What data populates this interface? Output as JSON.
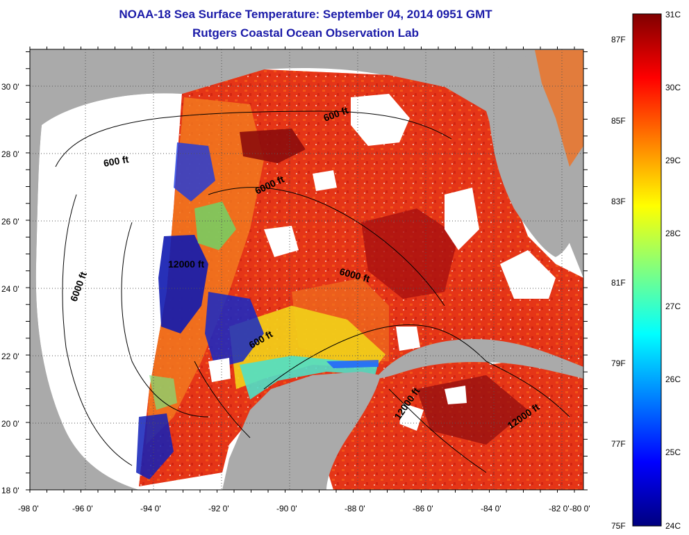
{
  "title": {
    "line1": "NOAA-18 Sea Surface Temperature:  September 04, 2014 0951 GMT",
    "line2": "Rutgers Coastal Ocean Observation Lab"
  },
  "axes": {
    "lat_labels": [
      "18 0'",
      "20 0'",
      "22 0'",
      "24 0'",
      "26 0'",
      "28 0'",
      "30 0'"
    ],
    "lon_labels": [
      "-98 0'",
      "-96 0'",
      "-94 0'",
      "-92 0'",
      "-90 0'",
      "-88 0'",
      "-86 0'",
      "-84 0'",
      "-82 0'",
      "-80 0'"
    ]
  },
  "contour_labels": [
    "600 ft",
    "6000 ft",
    "12000 ft",
    "600 ft",
    "6000 ft",
    "6000 ft",
    "600 ft",
    "12000 ft",
    "12000 ft"
  ],
  "colorbar": {
    "fahrenheit": [
      "75F",
      "77F",
      "79F",
      "81F",
      "83F",
      "85F",
      "87F"
    ],
    "celsius": [
      "24C",
      "25C",
      "26C",
      "27C",
      "28C",
      "29C",
      "30C",
      "31C"
    ],
    "stops": [
      "#00007f",
      "#0000ff",
      "#0080ff",
      "#00ffff",
      "#80ff80",
      "#ffff00",
      "#ff8000",
      "#ff0000",
      "#800000"
    ]
  },
  "colors": {
    "land": "#aaaaaa",
    "nodata": "#ffffff",
    "title": "#1a1aa8"
  }
}
